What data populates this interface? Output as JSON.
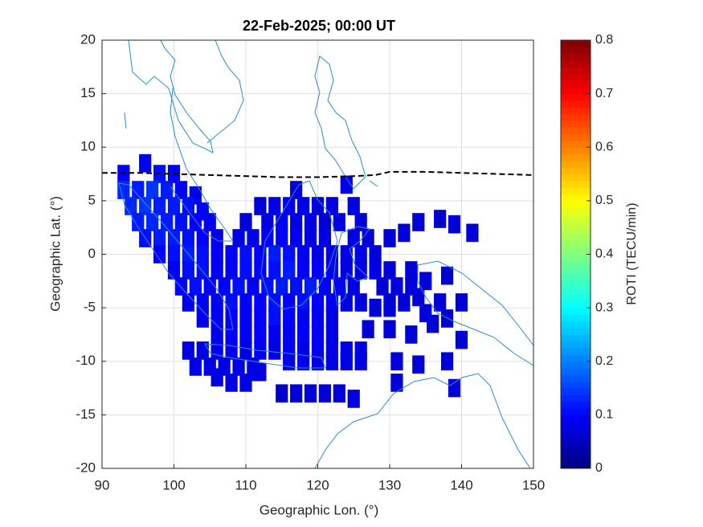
{
  "chart_data": {
    "type": "heatmap",
    "title": "22-Feb-2025; 00:00 UT",
    "xlabel": "Geographic Lon. (°)",
    "ylabel": "Geographic Lat. (°)",
    "colorbar_label": "ROTI (TECU/min)",
    "xlim": [
      90,
      150
    ],
    "xticks": [
      90,
      100,
      110,
      120,
      130,
      140,
      150
    ],
    "ylim": [
      -20,
      20
    ],
    "yticks": [
      -20,
      -15,
      -10,
      -5,
      0,
      5,
      10,
      15,
      20
    ],
    "clim": [
      0,
      0.8
    ],
    "cticks": [
      0,
      0.1,
      0.2,
      0.3,
      0.4,
      0.5,
      0.6,
      0.7,
      0.8
    ],
    "colormap": "jet",
    "grid": true,
    "points": [
      [
        93,
        7.5,
        0.1
      ],
      [
        96,
        8.5,
        0.09
      ],
      [
        98,
        7.5,
        0.11
      ],
      [
        100,
        7.5,
        0.1
      ],
      [
        93,
        6,
        0.13
      ],
      [
        95,
        6,
        0.12
      ],
      [
        97,
        6,
        0.14
      ],
      [
        99,
        6,
        0.12
      ],
      [
        101,
        6,
        0.1
      ],
      [
        103,
        5.5,
        0.08
      ],
      [
        117,
        6,
        0.07
      ],
      [
        124,
        6.5,
        0.08
      ],
      [
        94,
        4.5,
        0.13
      ],
      [
        96,
        4.5,
        0.14
      ],
      [
        98,
        4.5,
        0.12
      ],
      [
        100,
        4.5,
        0.12
      ],
      [
        102,
        4.5,
        0.11
      ],
      [
        104,
        4,
        0.1
      ],
      [
        112,
        4.5,
        0.07
      ],
      [
        114,
        4.5,
        0.08
      ],
      [
        116,
        4.5,
        0.09
      ],
      [
        118,
        4.5,
        0.08
      ],
      [
        120,
        4.5,
        0.07
      ],
      [
        122,
        4.5,
        0.08
      ],
      [
        125,
        4.5,
        0.08
      ],
      [
        95,
        3,
        0.12
      ],
      [
        97,
        3,
        0.13
      ],
      [
        99,
        3,
        0.12
      ],
      [
        101,
        3,
        0.11
      ],
      [
        103,
        3,
        0.1
      ],
      [
        105,
        3,
        0.09
      ],
      [
        110,
        3,
        0.07
      ],
      [
        113,
        3,
        0.08
      ],
      [
        115,
        3,
        0.09
      ],
      [
        117,
        3,
        0.08
      ],
      [
        119,
        3,
        0.08
      ],
      [
        121,
        3,
        0.07
      ],
      [
        123,
        3,
        0.08
      ],
      [
        126,
        3,
        0.07
      ],
      [
        134,
        3,
        0.07
      ],
      [
        137,
        3.3,
        0.06
      ],
      [
        139,
        2.8,
        0.07
      ],
      [
        96,
        1.5,
        0.11
      ],
      [
        98,
        1.5,
        0.12
      ],
      [
        100,
        1.5,
        0.12
      ],
      [
        102,
        1.5,
        0.11
      ],
      [
        104,
        1.5,
        0.1
      ],
      [
        106,
        1.5,
        0.09
      ],
      [
        109,
        1.5,
        0.08
      ],
      [
        111,
        1.5,
        0.09
      ],
      [
        113,
        1.5,
        0.1
      ],
      [
        115,
        1.5,
        0.1
      ],
      [
        117,
        1.5,
        0.09
      ],
      [
        119,
        1.5,
        0.08
      ],
      [
        121,
        1.5,
        0.08
      ],
      [
        125,
        1.5,
        0.08
      ],
      [
        127,
        1.5,
        0.07
      ],
      [
        130,
        1.5,
        0.07
      ],
      [
        132,
        2,
        0.07
      ],
      [
        141.5,
        2,
        0.07
      ],
      [
        98,
        0,
        0.1
      ],
      [
        100,
        0,
        0.11
      ],
      [
        102,
        0,
        0.12
      ],
      [
        104,
        0,
        0.11
      ],
      [
        106,
        0,
        0.1
      ],
      [
        108,
        0,
        0.1
      ],
      [
        110,
        0,
        0.11
      ],
      [
        112,
        0,
        0.1
      ],
      [
        114,
        0,
        0.12
      ],
      [
        116,
        0,
        0.11
      ],
      [
        118,
        0,
        0.09
      ],
      [
        120,
        0,
        0.08
      ],
      [
        122,
        0,
        0.08
      ],
      [
        124,
        0,
        0.08
      ],
      [
        126,
        0,
        0.08
      ],
      [
        128,
        0,
        0.07
      ],
      [
        100,
        -1.5,
        0.1
      ],
      [
        102,
        -1.5,
        0.11
      ],
      [
        104,
        -1.5,
        0.11
      ],
      [
        106,
        -1.5,
        0.1
      ],
      [
        108,
        -1.5,
        0.1
      ],
      [
        110,
        -1.5,
        0.11
      ],
      [
        112,
        -1.5,
        0.1
      ],
      [
        114,
        -1.5,
        0.11
      ],
      [
        116,
        -1.5,
        0.12
      ],
      [
        118,
        -1.5,
        0.1
      ],
      [
        120,
        -1.5,
        0.09
      ],
      [
        122,
        -1.5,
        0.09
      ],
      [
        124,
        -1.5,
        0.08
      ],
      [
        126,
        -1.5,
        0.08
      ],
      [
        128,
        -1.5,
        0.08
      ],
      [
        130,
        -1.5,
        0.07
      ],
      [
        133,
        -1.5,
        0.07
      ],
      [
        101,
        -3,
        0.1
      ],
      [
        103,
        -3,
        0.11
      ],
      [
        105,
        -3,
        0.1
      ],
      [
        107,
        -3,
        0.1
      ],
      [
        109,
        -3,
        0.11
      ],
      [
        111,
        -3,
        0.1
      ],
      [
        113,
        -3,
        0.11
      ],
      [
        115,
        -3,
        0.12
      ],
      [
        117,
        -3,
        0.11
      ],
      [
        119,
        -3,
        0.12
      ],
      [
        121,
        -3,
        0.1
      ],
      [
        123,
        -3,
        0.09
      ],
      [
        125,
        -3,
        0.08
      ],
      [
        129,
        -3,
        0.07
      ],
      [
        131,
        -3,
        0.08
      ],
      [
        133,
        -3,
        0.07
      ],
      [
        135,
        -2.5,
        0.07
      ],
      [
        138,
        -2,
        0.06
      ],
      [
        102,
        -4.5,
        0.09
      ],
      [
        104,
        -4.5,
        0.1
      ],
      [
        106,
        -4.5,
        0.1
      ],
      [
        108,
        -4.5,
        0.11
      ],
      [
        110,
        -4.5,
        0.1
      ],
      [
        112,
        -4.5,
        0.1
      ],
      [
        114,
        -4.5,
        0.11
      ],
      [
        116,
        -4.5,
        0.1
      ],
      [
        118,
        -4.5,
        0.11
      ],
      [
        120,
        -4.5,
        0.1
      ],
      [
        122,
        -4.5,
        0.09
      ],
      [
        124,
        -4.5,
        0.08
      ],
      [
        126,
        -4.5,
        0.08
      ],
      [
        130,
        -4.5,
        0.07
      ],
      [
        132,
        -4.5,
        0.07
      ],
      [
        134,
        -4,
        0.07
      ],
      [
        137,
        -4.5,
        0.07
      ],
      [
        140,
        -4.5,
        0.07
      ],
      [
        104,
        -6,
        0.09
      ],
      [
        106,
        -6,
        0.1
      ],
      [
        108,
        -6,
        0.1
      ],
      [
        110,
        -6,
        0.09
      ],
      [
        112,
        -6,
        0.1
      ],
      [
        114,
        -6,
        0.11
      ],
      [
        116,
        -6,
        0.1
      ],
      [
        118,
        -6,
        0.09
      ],
      [
        120,
        -6,
        0.09
      ],
      [
        122,
        -6,
        0.08
      ],
      [
        128,
        -5,
        0.07
      ],
      [
        130,
        -5,
        0.07
      ],
      [
        135,
        -5.5,
        0.07
      ],
      [
        106,
        -7.5,
        0.09
      ],
      [
        108,
        -7.5,
        0.1
      ],
      [
        110,
        -7.5,
        0.09
      ],
      [
        112,
        -7.5,
        0.1
      ],
      [
        114,
        -7.5,
        0.09
      ],
      [
        116,
        -7.5,
        0.09
      ],
      [
        118,
        -7.5,
        0.1
      ],
      [
        120,
        -7.5,
        0.09
      ],
      [
        122,
        -7.5,
        0.08
      ],
      [
        127,
        -7,
        0.07
      ],
      [
        133,
        -7.5,
        0.07
      ],
      [
        136,
        -6.5,
        0.07
      ],
      [
        138,
        -6,
        0.06
      ],
      [
        102,
        -9,
        0.08
      ],
      [
        104,
        -9,
        0.08
      ],
      [
        106,
        -9,
        0.09
      ],
      [
        108,
        -9,
        0.09
      ],
      [
        110,
        -9,
        0.08
      ],
      [
        112,
        -9,
        0.09
      ],
      [
        114,
        -9,
        0.08
      ],
      [
        116,
        -9,
        0.09
      ],
      [
        118,
        -9,
        0.08
      ],
      [
        120,
        -9,
        0.09
      ],
      [
        122,
        -9,
        0.08
      ],
      [
        124,
        -9,
        0.08
      ],
      [
        126,
        -9,
        0.08
      ],
      [
        130,
        -7,
        0.07
      ],
      [
        140,
        -8,
        0.07
      ],
      [
        103,
        -10.5,
        0.08
      ],
      [
        105,
        -10.5,
        0.08
      ],
      [
        107,
        -10.5,
        0.08
      ],
      [
        109,
        -10.5,
        0.08
      ],
      [
        111,
        -10.5,
        0.09
      ],
      [
        116,
        -10,
        0.08
      ],
      [
        118,
        -10,
        0.09
      ],
      [
        120,
        -10,
        0.08
      ],
      [
        122,
        -10,
        0.08
      ],
      [
        124,
        -10,
        0.08
      ],
      [
        126,
        -10,
        0.08
      ],
      [
        131,
        -10,
        0.07
      ],
      [
        134,
        -10.3,
        0.07
      ],
      [
        138,
        -10,
        0.07
      ],
      [
        106,
        -11.5,
        0.08
      ],
      [
        108,
        -12,
        0.08
      ],
      [
        110,
        -12,
        0.08
      ],
      [
        112,
        -11,
        0.08
      ],
      [
        111,
        -11,
        0.08
      ],
      [
        131,
        -12,
        0.07
      ],
      [
        115,
        -13,
        0.06
      ],
      [
        117,
        -13,
        0.07
      ],
      [
        119,
        -13,
        0.07
      ],
      [
        121,
        -13,
        0.07
      ],
      [
        123,
        -13,
        0.07
      ],
      [
        125,
        -13.5,
        0.08
      ],
      [
        139,
        -12.5,
        0.07
      ]
    ],
    "line": {
      "x": [
        90,
        95,
        100,
        105,
        110,
        115,
        120,
        125,
        128,
        130,
        135,
        140,
        145,
        150
      ],
      "y": [
        7.6,
        7.6,
        7.5,
        7.4,
        7.3,
        7.2,
        7.2,
        7.3,
        7.4,
        7.7,
        7.7,
        7.6,
        7.5,
        7.4
      ]
    }
  }
}
